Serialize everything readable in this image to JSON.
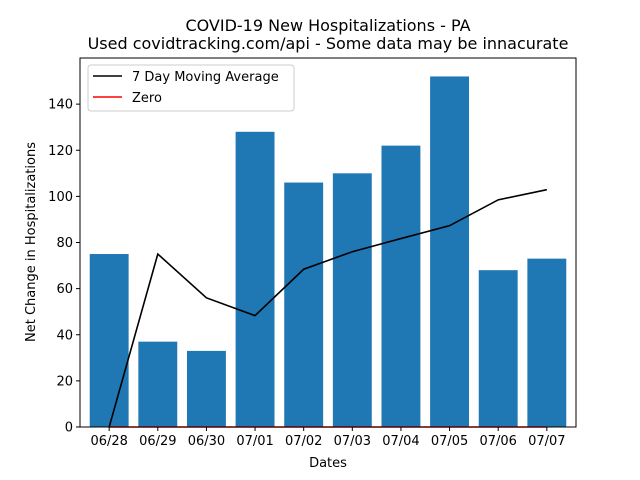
{
  "chart_data": {
    "type": "bar",
    "title": "COVID-19 New Hospitalizations - PA",
    "subtitle": "Used covidtracking.com/api - Some data may be innacurate",
    "xlabel": "Dates",
    "ylabel": "Net Change in Hospitalizations",
    "categories": [
      "06/28",
      "06/29",
      "06/30",
      "07/01",
      "07/02",
      "07/03",
      "07/04",
      "07/05",
      "07/06",
      "07/07"
    ],
    "ylim": [
      0,
      160
    ],
    "yticks": [
      0,
      20,
      40,
      60,
      80,
      100,
      120,
      140
    ],
    "bar_color": "#1f77b4",
    "series": [
      {
        "kind": "bar",
        "values": [
          75,
          37,
          33,
          128,
          106,
          110,
          122,
          152,
          68,
          73
        ]
      },
      {
        "kind": "line",
        "name": "7 Day Moving Average",
        "color": "#000000",
        "values": [
          0,
          75,
          56,
          48.3,
          68.4,
          76,
          81.7,
          87.3,
          98.5,
          102.9
        ]
      },
      {
        "kind": "line",
        "name": "Zero",
        "color": "#ff0000",
        "values": [
          0,
          0,
          0,
          0,
          0,
          0,
          0,
          0,
          0,
          0
        ]
      }
    ],
    "legend_position": "top-left",
    "grid": false
  }
}
